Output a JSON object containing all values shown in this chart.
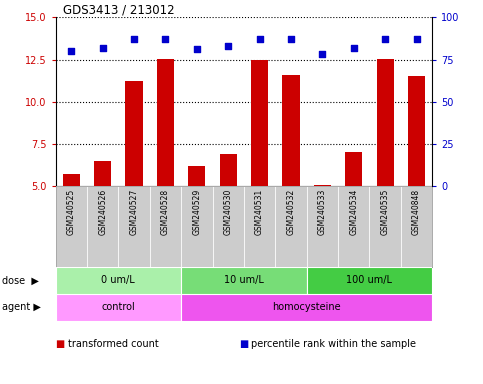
{
  "title": "GDS3413 / 213012",
  "samples": [
    "GSM240525",
    "GSM240526",
    "GSM240527",
    "GSM240528",
    "GSM240529",
    "GSM240530",
    "GSM240531",
    "GSM240532",
    "GSM240533",
    "GSM240534",
    "GSM240535",
    "GSM240848"
  ],
  "transformed_count": [
    5.7,
    6.5,
    11.2,
    12.55,
    6.2,
    6.9,
    12.45,
    11.6,
    5.05,
    7.0,
    12.55,
    11.5
  ],
  "percentile_rank": [
    80,
    82,
    87,
    87,
    81,
    83,
    87,
    87,
    78,
    82,
    87,
    87
  ],
  "ylim_left": [
    5,
    15
  ],
  "ylim_right": [
    0,
    100
  ],
  "yticks_left": [
    5,
    7.5,
    10,
    12.5,
    15
  ],
  "yticks_right": [
    0,
    25,
    50,
    75,
    100
  ],
  "bar_color": "#cc0000",
  "dot_color": "#0000cc",
  "dose_groups": [
    {
      "label": "0 um/L",
      "start": 0,
      "end": 4,
      "color": "#aaf0aa"
    },
    {
      "label": "10 um/L",
      "start": 4,
      "end": 8,
      "color": "#77dd77"
    },
    {
      "label": "100 um/L",
      "start": 8,
      "end": 12,
      "color": "#44cc44"
    }
  ],
  "agent_groups": [
    {
      "label": "control",
      "start": 0,
      "end": 4,
      "color": "#ff99ff"
    },
    {
      "label": "homocysteine",
      "start": 4,
      "end": 12,
      "color": "#ee55ee"
    }
  ],
  "dose_label": "dose",
  "agent_label": "agent",
  "legend_items": [
    {
      "color": "#cc0000",
      "label": "transformed count"
    },
    {
      "color": "#0000cc",
      "label": "percentile rank within the sample"
    }
  ],
  "tick_color_left": "#cc0000",
  "tick_color_right": "#0000cc",
  "sample_bg_color": "#cccccc",
  "fig_width": 4.83,
  "fig_height": 3.84,
  "dpi": 100
}
